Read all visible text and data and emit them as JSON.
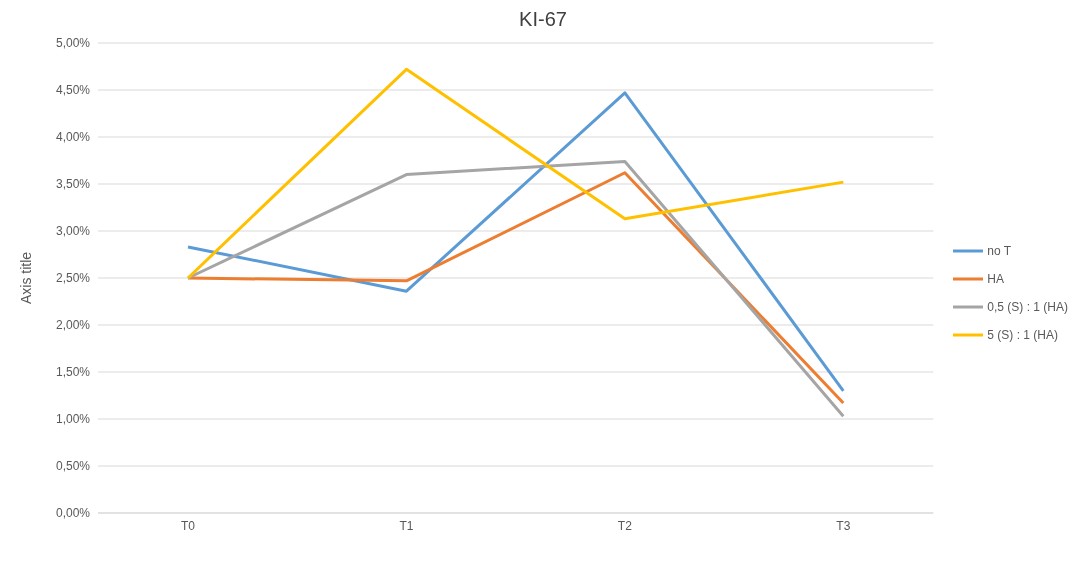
{
  "chart_data": {
    "type": "line",
    "title": "KI-67",
    "ylabel": "Axis title",
    "categories": [
      "T0",
      "T1",
      "T2",
      "T3"
    ],
    "series": [
      {
        "name": "no T",
        "color": "#5b9bd5",
        "values": [
          2.83,
          2.36,
          4.47,
          1.3
        ]
      },
      {
        "name": "HA",
        "color": "#ed7d31",
        "values": [
          2.5,
          2.47,
          3.62,
          1.17
        ]
      },
      {
        "name": "0,5 (S) : 1 (HA)",
        "color": "#a5a5a5",
        "values": [
          2.5,
          3.6,
          3.74,
          1.03
        ]
      },
      {
        "name": "5 (S) : 1 (HA)",
        "color": "#ffc000",
        "values": [
          2.5,
          4.72,
          3.13,
          3.52
        ]
      }
    ],
    "ylim": [
      0,
      5
    ],
    "yticks": [
      {
        "value": 0,
        "label": "0,00%"
      },
      {
        "value": 0.5,
        "label": "0,50%"
      },
      {
        "value": 1,
        "label": "1,00%"
      },
      {
        "value": 1.5,
        "label": "1,50%"
      },
      {
        "value": 2,
        "label": "2,00%"
      },
      {
        "value": 2.5,
        "label": "2,50%"
      },
      {
        "value": 3,
        "label": "3,00%"
      },
      {
        "value": 3.5,
        "label": "3,50%"
      },
      {
        "value": 4,
        "label": "4,00%"
      },
      {
        "value": 4.5,
        "label": "4,50%"
      },
      {
        "value": 5,
        "label": "5,00%"
      }
    ],
    "grid": "y",
    "legend": "right",
    "marker": "none",
    "line_style": "solid"
  }
}
